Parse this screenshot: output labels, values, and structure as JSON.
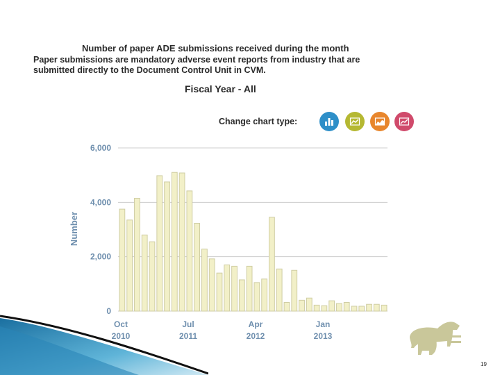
{
  "header": {
    "title": "Number of paper ADE submissions received during the month",
    "description": "Paper submissions are mandatory adverse event reports from industry that are submitted directly to the Document Control Unit in CVM.",
    "fiscal_year": "Fiscal Year - All"
  },
  "chart_type_selector": {
    "label": "Change chart type:",
    "buttons": [
      {
        "icon": "bar-chart-icon",
        "color": "#2e8fc8"
      },
      {
        "icon": "line-chart-icon",
        "color": "#b5b832"
      },
      {
        "icon": "area-chart-icon",
        "color": "#e8862c"
      },
      {
        "icon": "trend-chart-icon",
        "color": "#d04a6b"
      }
    ]
  },
  "colors": {
    "bar_fill": "#f2f0c8",
    "bar_stroke": "#cfcda3",
    "grid": "#cccccc",
    "axis_text": "#6f8fae"
  },
  "chart_data": {
    "type": "bar",
    "ylabel": "Number",
    "ylim": [
      0,
      6000
    ],
    "yticks": [
      "0",
      "2,000",
      "4,000",
      "6,000"
    ],
    "grid": true,
    "xtick_labels": [
      {
        "index": 0,
        "month": "Oct",
        "year": "2010"
      },
      {
        "index": 9,
        "month": "Jul",
        "year": "2011"
      },
      {
        "index": 18,
        "month": "Apr",
        "year": "2012"
      },
      {
        "index": 27,
        "month": "Jan",
        "year": "2013"
      }
    ],
    "values": [
      3750,
      3350,
      4150,
      2800,
      2550,
      4980,
      4750,
      5100,
      5080,
      4420,
      3230,
      2280,
      1920,
      1400,
      1700,
      1650,
      1150,
      1650,
      1050,
      1180,
      3450,
      1550,
      320,
      1500,
      400,
      480,
      220,
      200,
      380,
      280,
      320,
      180,
      180,
      250,
      250,
      220
    ]
  },
  "page_number": "19"
}
